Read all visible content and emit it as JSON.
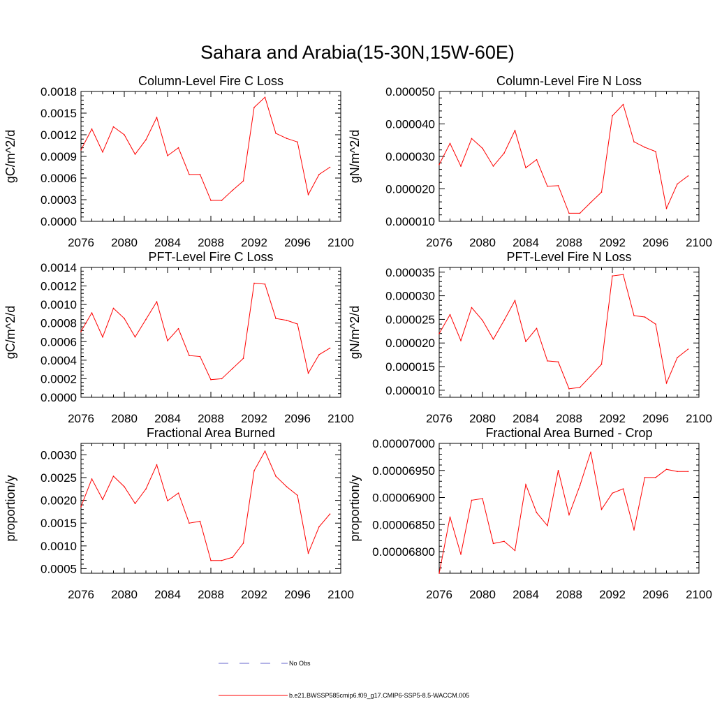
{
  "figure": {
    "title": "Sahara and Arabia(15-30N,15W-60E)",
    "colors": {
      "model": "#ff0000",
      "obs": "#6666cc",
      "axis": "#000000"
    }
  },
  "legend": {
    "entries": [
      {
        "label": "No Obs",
        "style": "dashed",
        "color": "#6666cc"
      },
      {
        "label": "b.e21.BWSSP585cmip6.f09_g17.CMIP6-SSP5-8.5-WACCM.005",
        "style": "solid",
        "color": "#ff0000"
      }
    ]
  },
  "chart_data": [
    {
      "type": "line",
      "title": "Column-Level Fire C Loss",
      "ylabel": "gC/m^2/d",
      "xlim": [
        2076,
        2100
      ],
      "ylim": [
        0,
        0.0018
      ],
      "xticks": [
        "2076",
        "2080",
        "2084",
        "2088",
        "2092",
        "2096",
        "2100"
      ],
      "yticks": [
        "0.0000",
        "0.0003",
        "0.0006",
        "0.0009",
        "0.0012",
        "0.0015",
        "0.0018"
      ],
      "grid": false,
      "x": [
        2076,
        2077,
        2078,
        2079,
        2080,
        2081,
        2082,
        2083,
        2084,
        2085,
        2086,
        2087,
        2088,
        2089,
        2090,
        2091,
        2092,
        2093,
        2094,
        2095,
        2096,
        2097,
        2098,
        2099
      ],
      "series": [
        {
          "name": "b.e21.BWSSP585cmip6.f09_g17.CMIP6-SSP5-8.5-WACCM.005",
          "values": [
            0.00099,
            0.00128,
            0.00096,
            0.00131,
            0.0012,
            0.00093,
            0.00113,
            0.00144,
            0.00091,
            0.00102,
            0.00065,
            0.00065,
            0.00029,
            0.00029,
            0.00043,
            0.00056,
            0.00158,
            0.00172,
            0.00122,
            0.00115,
            0.0011,
            0.00037,
            0.00065,
            0.00075
          ]
        }
      ]
    },
    {
      "type": "line",
      "title": "Column-Level Fire N Loss",
      "ylabel": "gN/m^2/d",
      "xlim": [
        2076,
        2100
      ],
      "ylim": [
        1e-05,
        5e-05
      ],
      "xticks": [
        "2076",
        "2080",
        "2084",
        "2088",
        "2092",
        "2096",
        "2100"
      ],
      "yticks": [
        "0.000010",
        "0.000020",
        "0.000030",
        "0.000040",
        "0.000050"
      ],
      "grid": false,
      "x": [
        2076,
        2077,
        2078,
        2079,
        2080,
        2081,
        2082,
        2083,
        2084,
        2085,
        2086,
        2087,
        2088,
        2089,
        2090,
        2091,
        2092,
        2093,
        2094,
        2095,
        2096,
        2097,
        2098,
        2099
      ],
      "series": [
        {
          "name": "b.e21.BWSSP585cmip6.f09_g17.CMIP6-SSP5-8.5-WACCM.005",
          "values": [
            2.75e-05,
            3.4e-05,
            2.7e-05,
            3.55e-05,
            3.25e-05,
            2.7e-05,
            3.1e-05,
            3.8e-05,
            2.65e-05,
            2.9e-05,
            2.08e-05,
            2.1e-05,
            1.25e-05,
            1.25e-05,
            1.58e-05,
            1.9e-05,
            4.25e-05,
            4.6e-05,
            3.45e-05,
            3.28e-05,
            3.15e-05,
            1.4e-05,
            2.15e-05,
            2.4e-05
          ]
        }
      ]
    },
    {
      "type": "line",
      "title": "PFT-Level Fire C Loss",
      "ylabel": "gC/m^2/d",
      "xlim": [
        2076,
        2100
      ],
      "ylim": [
        0,
        0.0014
      ],
      "xticks": [
        "2076",
        "2080",
        "2084",
        "2088",
        "2092",
        "2096",
        "2100"
      ],
      "yticks": [
        "0.0000",
        "0.0002",
        "0.0004",
        "0.0006",
        "0.0008",
        "0.0010",
        "0.0012",
        "0.0014"
      ],
      "grid": false,
      "x": [
        2076,
        2077,
        2078,
        2079,
        2080,
        2081,
        2082,
        2083,
        2084,
        2085,
        2086,
        2087,
        2088,
        2089,
        2090,
        2091,
        2092,
        2093,
        2094,
        2095,
        2096,
        2097,
        2098,
        2099
      ],
      "series": [
        {
          "name": "b.e21.BWSSP585cmip6.f09_g17.CMIP6-SSP5-8.5-WACCM.005",
          "values": [
            0.00071,
            0.00091,
            0.00065,
            0.00096,
            0.00085,
            0.00065,
            0.00084,
            0.00103,
            0.00061,
            0.00074,
            0.00045,
            0.00044,
            0.00019,
            0.0002,
            0.00031,
            0.00042,
            0.00123,
            0.00122,
            0.00085,
            0.00083,
            0.00079,
            0.00026,
            0.00046,
            0.00053
          ]
        }
      ]
    },
    {
      "type": "line",
      "title": "PFT-Level Fire N Loss",
      "ylabel": "gN/m^2/d",
      "xlim": [
        2076,
        2100
      ],
      "ylim": [
        8.5e-06,
        3.6e-05
      ],
      "xticks": [
        "2076",
        "2080",
        "2084",
        "2088",
        "2092",
        "2096",
        "2100"
      ],
      "yticks": [
        "0.000010",
        "0.000015",
        "0.000020",
        "0.000025",
        "0.000030",
        "0.000035"
      ],
      "grid": false,
      "x": [
        2076,
        2077,
        2078,
        2079,
        2080,
        2081,
        2082,
        2083,
        2084,
        2085,
        2086,
        2087,
        2088,
        2089,
        2090,
        2091,
        2092,
        2093,
        2094,
        2095,
        2096,
        2097,
        2098,
        2099
      ],
      "series": [
        {
          "name": "b.e21.BWSSP585cmip6.f09_g17.CMIP6-SSP5-8.5-WACCM.005",
          "values": [
            2.2e-05,
            2.6e-05,
            2.05e-05,
            2.75e-05,
            2.48e-05,
            2.08e-05,
            2.48e-05,
            2.9e-05,
            2.03e-05,
            2.31e-05,
            1.62e-05,
            1.6e-05,
            1.03e-05,
            1.06e-05,
            1.3e-05,
            1.55e-05,
            3.42e-05,
            3.45e-05,
            2.58e-05,
            2.55e-05,
            2.4e-05,
            1.15e-05,
            1.69e-05,
            1.87e-05
          ]
        }
      ]
    },
    {
      "type": "line",
      "title": "Fractional Area Burned",
      "ylabel": "proportion/y",
      "xlim": [
        2076,
        2100
      ],
      "ylim": [
        0.0004,
        0.00325
      ],
      "xticks": [
        "2076",
        "2080",
        "2084",
        "2088",
        "2092",
        "2096",
        "2100"
      ],
      "yticks": [
        "0.0005",
        "0.0010",
        "0.0015",
        "0.0020",
        "0.0025",
        "0.0030"
      ],
      "grid": false,
      "x": [
        2076,
        2077,
        2078,
        2079,
        2080,
        2081,
        2082,
        2083,
        2084,
        2085,
        2086,
        2087,
        2088,
        2089,
        2090,
        2091,
        2092,
        2093,
        2094,
        2095,
        2096,
        2097,
        2098,
        2099
      ],
      "series": [
        {
          "name": "b.e21.BWSSP585cmip6.f09_g17.CMIP6-SSP5-8.5-WACCM.005",
          "values": [
            0.00186,
            0.00247,
            0.00202,
            0.00253,
            0.0023,
            0.00193,
            0.00225,
            0.00278,
            0.00199,
            0.00216,
            0.0015,
            0.00154,
            0.00068,
            0.00068,
            0.00075,
            0.00106,
            0.00265,
            0.00308,
            0.00253,
            0.0023,
            0.00211,
            0.00084,
            0.00142,
            0.0017
          ]
        }
      ]
    },
    {
      "type": "line",
      "title": "Fractional Area Burned - Crop",
      "ylabel": "proportion/y",
      "xlim": [
        2076,
        2100
      ],
      "ylim": [
        6.76e-05,
        7e-05
      ],
      "xticks": [
        "2076",
        "2080",
        "2084",
        "2088",
        "2092",
        "2096",
        "2100"
      ],
      "yticks": [
        "0.00006800",
        "0.00006850",
        "0.00006900",
        "0.00006950",
        "0.00007000"
      ],
      "grid": false,
      "x": [
        2076,
        2077,
        2078,
        2079,
        2080,
        2081,
        2082,
        2083,
        2084,
        2085,
        2086,
        2087,
        2088,
        2089,
        2090,
        2091,
        2092,
        2093,
        2094,
        2095,
        2096,
        2097,
        2098,
        2099
      ],
      "series": [
        {
          "name": "b.e21.BWSSP585cmip6.f09_g17.CMIP6-SSP5-8.5-WACCM.005",
          "values": [
            6.76e-05,
            6.864e-05,
            6.795e-05,
            6.895e-05,
            6.898e-05,
            6.815e-05,
            6.819e-05,
            6.802e-05,
            6.924e-05,
            6.872e-05,
            6.848e-05,
            6.95e-05,
            6.868e-05,
            6.922e-05,
            6.984e-05,
            6.878e-05,
            6.908e-05,
            6.916e-05,
            6.84e-05,
            6.937e-05,
            6.937e-05,
            6.952e-05,
            6.948e-05,
            6.948e-05
          ]
        }
      ]
    }
  ]
}
